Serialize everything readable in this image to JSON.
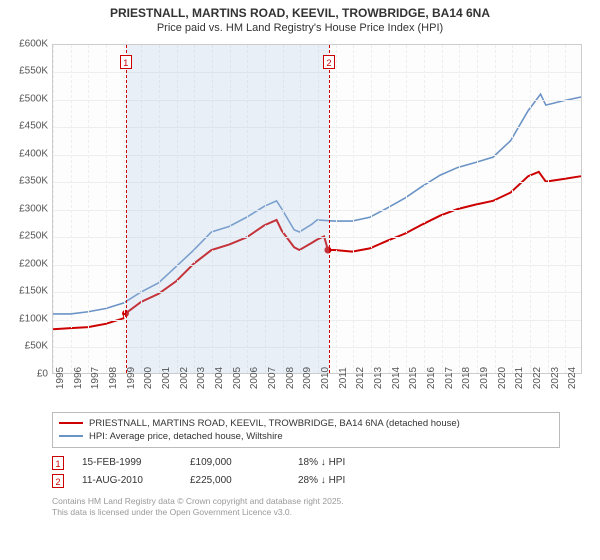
{
  "title_line1": "PRIESTNALL, MARTINS ROAD, KEEVIL, TROWBRIDGE, BA14 6NA",
  "title_line2": "Price paid vs. HM Land Registry's House Price Index (HPI)",
  "chart": {
    "type": "line",
    "background_color": "#fdfdfd",
    "grid_color": "#eeeeee",
    "border_color": "#cccccc",
    "shade_color": "rgba(173,200,230,0.25)",
    "ylim": [
      0,
      600000
    ],
    "ytick_step": 50000,
    "yticks": [
      "£0",
      "£50K",
      "£100K",
      "£150K",
      "£200K",
      "£250K",
      "£300K",
      "£350K",
      "£400K",
      "£450K",
      "£500K",
      "£550K",
      "£600K"
    ],
    "xlim": [
      1995,
      2025
    ],
    "xticks": [
      1995,
      1996,
      1997,
      1998,
      1999,
      2000,
      2001,
      2002,
      2003,
      2004,
      2005,
      2006,
      2007,
      2008,
      2009,
      2010,
      2011,
      2012,
      2013,
      2014,
      2015,
      2016,
      2017,
      2018,
      2019,
      2020,
      2021,
      2022,
      2023,
      2024
    ],
    "shade_ranges": [
      [
        1999.12,
        2010.62
      ]
    ],
    "series": [
      {
        "name": "PRIESTNALL, MARTINS ROAD, KEEVIL, TROWBRIDGE, BA14 6NA (detached house)",
        "color": "#cc0000",
        "width": 2,
        "points": [
          [
            1995,
            80000
          ],
          [
            1996,
            82000
          ],
          [
            1997,
            84000
          ],
          [
            1998,
            90000
          ],
          [
            1999,
            100000
          ],
          [
            1999.12,
            109000
          ],
          [
            2000,
            130000
          ],
          [
            2001,
            145000
          ],
          [
            2002,
            168000
          ],
          [
            2003,
            200000
          ],
          [
            2004,
            225000
          ],
          [
            2005,
            235000
          ],
          [
            2006,
            248000
          ],
          [
            2007,
            270000
          ],
          [
            2007.7,
            280000
          ],
          [
            2008,
            260000
          ],
          [
            2008.7,
            230000
          ],
          [
            2009,
            225000
          ],
          [
            2009.7,
            238000
          ],
          [
            2010,
            244000
          ],
          [
            2010.4,
            250000
          ],
          [
            2010.62,
            225000
          ],
          [
            2011,
            225000
          ],
          [
            2012,
            222000
          ],
          [
            2013,
            228000
          ],
          [
            2014,
            242000
          ],
          [
            2015,
            255000
          ],
          [
            2016,
            272000
          ],
          [
            2017,
            288000
          ],
          [
            2018,
            300000
          ],
          [
            2019,
            308000
          ],
          [
            2020,
            315000
          ],
          [
            2021,
            330000
          ],
          [
            2022,
            360000
          ],
          [
            2022.6,
            368000
          ],
          [
            2023,
            350000
          ],
          [
            2024,
            355000
          ],
          [
            2025,
            360000
          ]
        ],
        "markers": [
          [
            1999.12,
            109000
          ],
          [
            2010.62,
            225000
          ]
        ]
      },
      {
        "name": "HPI: Average price, detached house, Wiltshire",
        "color": "#6b93c6",
        "width": 1.6,
        "points": [
          [
            1995,
            108000
          ],
          [
            1996,
            108000
          ],
          [
            1997,
            112000
          ],
          [
            1998,
            118000
          ],
          [
            1999,
            128000
          ],
          [
            2000,
            148000
          ],
          [
            2001,
            165000
          ],
          [
            2002,
            195000
          ],
          [
            2003,
            225000
          ],
          [
            2004,
            258000
          ],
          [
            2005,
            268000
          ],
          [
            2006,
            285000
          ],
          [
            2007,
            305000
          ],
          [
            2007.7,
            315000
          ],
          [
            2008,
            300000
          ],
          [
            2008.7,
            262000
          ],
          [
            2009,
            258000
          ],
          [
            2009.7,
            272000
          ],
          [
            2010,
            280000
          ],
          [
            2011,
            278000
          ],
          [
            2012,
            278000
          ],
          [
            2013,
            285000
          ],
          [
            2014,
            302000
          ],
          [
            2015,
            320000
          ],
          [
            2016,
            342000
          ],
          [
            2017,
            362000
          ],
          [
            2018,
            376000
          ],
          [
            2019,
            385000
          ],
          [
            2020,
            395000
          ],
          [
            2021,
            425000
          ],
          [
            2022,
            480000
          ],
          [
            2022.7,
            510000
          ],
          [
            2023,
            490000
          ],
          [
            2024,
            498000
          ],
          [
            2025,
            505000
          ]
        ]
      }
    ],
    "marker_boxes": [
      {
        "n": "1",
        "x": 1999.12
      },
      {
        "n": "2",
        "x": 2010.62
      }
    ]
  },
  "legend": {
    "items": [
      {
        "color": "#cc0000",
        "label": "PRIESTNALL, MARTINS ROAD, KEEVIL, TROWBRIDGE, BA14 6NA (detached house)"
      },
      {
        "color": "#6b93c6",
        "label": "HPI: Average price, detached house, Wiltshire"
      }
    ]
  },
  "transactions": [
    {
      "n": "1",
      "date": "15-FEB-1999",
      "price": "£109,000",
      "diff": "18% ↓ HPI"
    },
    {
      "n": "2",
      "date": "11-AUG-2010",
      "price": "£225,000",
      "diff": "28% ↓ HPI"
    }
  ],
  "footnote_line1": "Contains HM Land Registry data © Crown copyright and database right 2025.",
  "footnote_line2": "This data is licensed under the Open Government Licence v3.0."
}
